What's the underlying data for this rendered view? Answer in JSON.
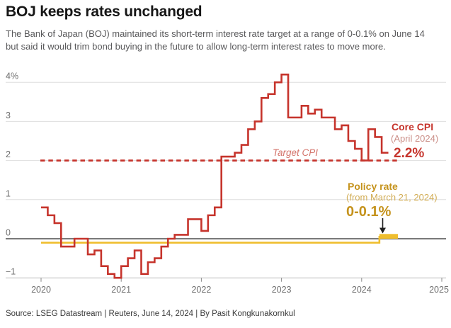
{
  "header": {
    "title": "BOJ keeps rates unchanged",
    "subtitle_line1": "The Bank of Japan (BOJ) maintained its short-term interest rate target at a range of 0-0.1% on June 14",
    "subtitle_line2": "but said it would trim bond buying in the future to allow long-term interest rates to move more."
  },
  "annotations": {
    "target_cpi_label": "Target CPI",
    "core_cpi": {
      "title": "Core CPI",
      "subtitle": "(April 2024)",
      "value": "2.2%"
    },
    "policy_rate": {
      "title": "Policy rate",
      "subtitle": "(from March 21, 2024)",
      "value": "0-0.1%"
    }
  },
  "source": "Source: LSEG Datastream | Reuters, June 14, 2024 | By Pasit Kongkunakornkul",
  "colors": {
    "red": "#c6342c",
    "red_light": "#cb8f88",
    "red_italic": "#d4756c",
    "gold_line": "#efbe2e",
    "gold_text": "#c5931d",
    "gold_light": "#d2ad55",
    "grid": "#dedede",
    "zero_line": "#4d4d4d",
    "axis_line": "#bdbdbd",
    "tick": "#6f6f6f",
    "arrow": "#1f1f1f"
  },
  "chart_data": {
    "type": "line",
    "step": true,
    "x_range": [
      "2020-1-1",
      "2025-1-1"
    ],
    "ylim": [
      -1,
      4.2
    ],
    "grid": true,
    "y_ticks": [
      {
        "value": 4,
        "label": "4%"
      },
      {
        "value": 3,
        "label": "3"
      },
      {
        "value": 2,
        "label": "2"
      },
      {
        "value": 1,
        "label": "1"
      },
      {
        "value": 0,
        "label": "0"
      },
      {
        "value": -1,
        "label": "−1"
      }
    ],
    "x_ticks": [
      {
        "date": "2020-1-1",
        "label": "2020"
      },
      {
        "date": "2021-1-1",
        "label": "2021"
      },
      {
        "date": "2022-1-1",
        "label": "2022"
      },
      {
        "date": "2023-1-1",
        "label": "2023"
      },
      {
        "date": "2024-1-1",
        "label": "2024"
      },
      {
        "date": "2025-1-1",
        "label": "2025"
      }
    ],
    "target_line": {
      "label": "Target CPI",
      "value": 2,
      "from": "2020-1-1",
      "to": "2024-6-14",
      "style": "dashed"
    },
    "series": [
      {
        "name": "Core CPI",
        "unit": "% year-on-year",
        "start": "2020-1",
        "frequency": "monthly",
        "last_point": {
          "label": "April 2024",
          "value": 2.2
        },
        "values": [
          0.8,
          0.6,
          0.4,
          -0.2,
          -0.2,
          0.0,
          0.0,
          -0.4,
          -0.3,
          -0.7,
          -0.9,
          -1.0,
          -0.7,
          -0.5,
          -0.3,
          -0.9,
          -0.6,
          -0.5,
          -0.2,
          0.0,
          0.1,
          0.1,
          0.5,
          0.5,
          0.2,
          0.6,
          0.8,
          2.1,
          2.1,
          2.2,
          2.4,
          2.8,
          3.0,
          3.6,
          3.7,
          4.0,
          4.2,
          3.1,
          3.1,
          3.4,
          3.2,
          3.3,
          3.1,
          3.1,
          2.8,
          2.9,
          2.5,
          2.3,
          2.0,
          2.8,
          2.6,
          2.2
        ]
      },
      {
        "name": "Policy rate",
        "unit": "%",
        "segments": [
          {
            "from": "2020-1-1",
            "to": "2024-3-21",
            "value": -0.1
          },
          {
            "from": "2024-3-21",
            "to": "2024-6-14",
            "range": [
              0,
              0.1
            ]
          }
        ]
      }
    ]
  }
}
